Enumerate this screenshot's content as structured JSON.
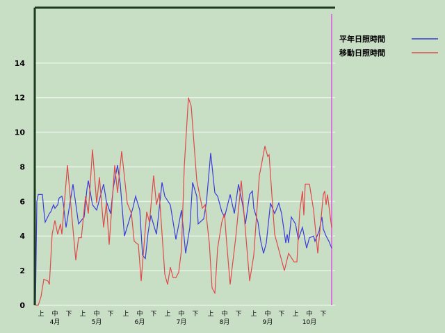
{
  "chart_data": {
    "type": "line",
    "title": "",
    "xlabel": "",
    "ylabel": "",
    "ylim": [
      0,
      17.2
    ],
    "xlim": [
      "4/1",
      "10/31"
    ],
    "grid": true,
    "legend_position": "top-right",
    "yticks": [
      "0",
      "2",
      "4",
      "6",
      "8",
      "10",
      "12",
      "14"
    ],
    "ytick_values": [
      0,
      2,
      4,
      6,
      8,
      10,
      12,
      14
    ],
    "months": [
      {
        "label": "4月",
        "month": 4
      },
      {
        "label": "5月",
        "month": 5
      },
      {
        "label": "6月",
        "month": 6
      },
      {
        "label": "7月",
        "month": 7
      },
      {
        "label": "8月",
        "month": 8
      },
      {
        "label": "9月",
        "month": 9
      },
      {
        "label": "10月",
        "month": 10
      }
    ],
    "dekads": [
      "上",
      "中",
      "下"
    ],
    "marker_line": {
      "date": "10/31",
      "color": "#d77ad7"
    },
    "series": [
      {
        "name": "平年日照時間",
        "color": "#3a3ad8",
        "points": [
          [
            "4/1",
            0
          ],
          [
            "4/2",
            6.0
          ],
          [
            "4/3",
            6.4
          ],
          [
            "4/6",
            6.4
          ],
          [
            "4/7",
            5.5
          ],
          [
            "4/8",
            4.8
          ],
          [
            "4/11",
            5.3
          ],
          [
            "4/12",
            5.4
          ],
          [
            "4/14",
            5.8
          ],
          [
            "4/15",
            5.6
          ],
          [
            "4/17",
            5.8
          ],
          [
            "4/18",
            6.2
          ],
          [
            "4/20",
            6.3
          ],
          [
            "4/21",
            5.9
          ],
          [
            "4/23",
            4.5
          ],
          [
            "4/28",
            7.0
          ],
          [
            "5/2",
            4.7
          ],
          [
            "5/6",
            5.1
          ],
          [
            "5/8",
            6.7
          ],
          [
            "5/9",
            7.2
          ],
          [
            "5/12",
            5.8
          ],
          [
            "5/15",
            5.5
          ],
          [
            "5/20",
            7.0
          ],
          [
            "5/22",
            6.0
          ],
          [
            "5/25",
            5.3
          ],
          [
            "5/27",
            6.8
          ],
          [
            "5/30",
            8.1
          ],
          [
            "6/1",
            7.0
          ],
          [
            "6/4",
            4.0
          ],
          [
            "6/10",
            5.6
          ],
          [
            "6/12",
            6.3
          ],
          [
            "6/15",
            5.5
          ],
          [
            "6/17",
            2.9
          ],
          [
            "6/19",
            2.7
          ],
          [
            "6/21",
            4.2
          ],
          [
            "6/23",
            5.2
          ],
          [
            "6/27",
            4.1
          ],
          [
            "7/1",
            7.1
          ],
          [
            "7/3",
            6.3
          ],
          [
            "7/7",
            5.8
          ],
          [
            "7/11",
            3.8
          ],
          [
            "7/15",
            5.5
          ],
          [
            "7/18",
            3.0
          ],
          [
            "7/21",
            4.5
          ],
          [
            "7/23",
            7.1
          ],
          [
            "7/26",
            6.3
          ],
          [
            "7/27",
            4.7
          ],
          [
            "7/31",
            5.0
          ],
          [
            "8/2",
            6.0
          ],
          [
            "8/5",
            8.8
          ],
          [
            "8/8",
            6.5
          ],
          [
            "8/10",
            6.3
          ],
          [
            "8/13",
            5.4
          ],
          [
            "8/15",
            5.1
          ],
          [
            "8/19",
            6.4
          ],
          [
            "8/22",
            5.3
          ],
          [
            "8/25",
            7.0
          ],
          [
            "8/28",
            5.8
          ],
          [
            "8/30",
            4.7
          ],
          [
            "9/2",
            6.4
          ],
          [
            "9/4",
            6.6
          ],
          [
            "9/5",
            5.6
          ],
          [
            "9/8",
            4.8
          ],
          [
            "9/10",
            3.7
          ],
          [
            "9/12",
            3.0
          ],
          [
            "9/14",
            3.6
          ],
          [
            "9/17",
            5.9
          ],
          [
            "9/20",
            5.3
          ],
          [
            "9/23",
            5.9
          ],
          [
            "9/25",
            5.3
          ],
          [
            "9/28",
            3.6
          ],
          [
            "9/29",
            4.1
          ],
          [
            "9/30",
            3.6
          ],
          [
            "10/2",
            5.1
          ],
          [
            "10/5",
            4.7
          ],
          [
            "10/7",
            3.8
          ],
          [
            "10/10",
            4.5
          ],
          [
            "10/13",
            3.3
          ],
          [
            "10/15",
            3.9
          ],
          [
            "10/18",
            4.0
          ],
          [
            "10/19",
            3.7
          ],
          [
            "10/22",
            4.3
          ],
          [
            "10/24",
            5.1
          ],
          [
            "10/25",
            4.4
          ],
          [
            "10/27",
            4.0
          ],
          [
            "10/29",
            3.7
          ],
          [
            "10/31",
            3.3
          ]
        ]
      },
      {
        "name": "移動日照時間",
        "color": "#e04848",
        "points": [
          [
            "4/1",
            0
          ],
          [
            "4/3",
            0
          ],
          [
            "4/5",
            0.5
          ],
          [
            "4/7",
            1.5
          ],
          [
            "4/10",
            1.4
          ],
          [
            "4/11",
            1.2
          ],
          [
            "4/13",
            4.1
          ],
          [
            "4/15",
            4.9
          ],
          [
            "4/17",
            4.1
          ],
          [
            "4/19",
            4.7
          ],
          [
            "4/20",
            4.1
          ],
          [
            "4/24",
            8.1
          ],
          [
            "4/27",
            5.3
          ],
          [
            "4/30",
            2.6
          ],
          [
            "5/2",
            3.9
          ],
          [
            "5/4",
            3.9
          ],
          [
            "5/7",
            6.3
          ],
          [
            "5/9",
            5.3
          ],
          [
            "5/12",
            9.0
          ],
          [
            "5/15",
            5.9
          ],
          [
            "5/17",
            7.4
          ],
          [
            "5/20",
            4.5
          ],
          [
            "5/22",
            5.9
          ],
          [
            "5/24",
            3.5
          ],
          [
            "5/28",
            8.1
          ],
          [
            "5/30",
            6.5
          ],
          [
            "6/2",
            8.9
          ],
          [
            "6/6",
            5.9
          ],
          [
            "6/9",
            5.3
          ],
          [
            "6/11",
            3.7
          ],
          [
            "6/14",
            3.5
          ],
          [
            "6/16",
            1.4
          ],
          [
            "6/20",
            5.4
          ],
          [
            "6/22",
            4.8
          ],
          [
            "6/25",
            7.5
          ],
          [
            "6/27",
            5.8
          ],
          [
            "6/29",
            6.5
          ],
          [
            "7/3",
            1.8
          ],
          [
            "7/5",
            1.2
          ],
          [
            "7/7",
            2.2
          ],
          [
            "7/9",
            1.6
          ],
          [
            "7/11",
            1.6
          ],
          [
            "7/13",
            1.9
          ],
          [
            "7/15",
            3.2
          ],
          [
            "7/17",
            8.0
          ],
          [
            "7/20",
            12.0
          ],
          [
            "7/22",
            11.5
          ],
          [
            "7/26",
            7.2
          ],
          [
            "7/30",
            5.6
          ],
          [
            "8/1",
            5.8
          ],
          [
            "8/4",
            3.6
          ],
          [
            "8/6",
            1.0
          ],
          [
            "8/8",
            0.7
          ],
          [
            "8/10",
            3.3
          ],
          [
            "8/13",
            4.8
          ],
          [
            "8/15",
            5.3
          ],
          [
            "8/16",
            4.1
          ],
          [
            "8/19",
            1.2
          ],
          [
            "8/23",
            3.9
          ],
          [
            "8/27",
            7.2
          ],
          [
            "9/2",
            1.4
          ],
          [
            "9/5",
            2.9
          ],
          [
            "9/9",
            7.5
          ],
          [
            "9/10",
            7.9
          ],
          [
            "9/13",
            9.2
          ],
          [
            "9/15",
            8.6
          ],
          [
            "9/16",
            8.7
          ],
          [
            "9/20",
            4.1
          ],
          [
            "9/24",
            2.9
          ],
          [
            "9/27",
            2.0
          ],
          [
            "9/30",
            3.0
          ],
          [
            "10/4",
            2.5
          ],
          [
            "10/6",
            2.5
          ],
          [
            "10/8",
            5.4
          ],
          [
            "10/10",
            6.6
          ],
          [
            "10/11",
            5.2
          ],
          [
            "10/12",
            7.0
          ],
          [
            "10/15",
            7.0
          ],
          [
            "10/16",
            6.5
          ],
          [
            "10/18",
            5.5
          ],
          [
            "10/21",
            3.0
          ],
          [
            "10/25",
            6.4
          ],
          [
            "10/26",
            6.6
          ],
          [
            "10/27",
            5.8
          ],
          [
            "10/28",
            6.4
          ],
          [
            "10/30",
            5.1
          ],
          [
            "10/31",
            4.5
          ]
        ]
      }
    ]
  }
}
